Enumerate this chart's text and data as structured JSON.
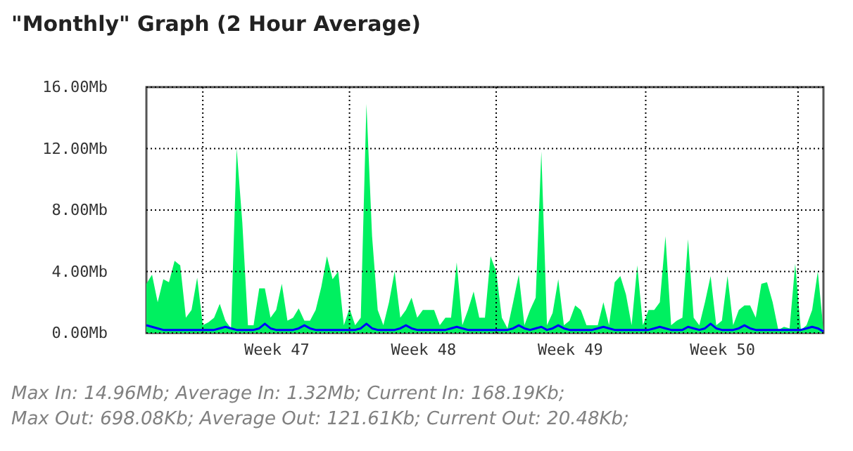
{
  "chart_data": {
    "type": "area",
    "title": "\"Monthly\" Graph (2 Hour Average)",
    "annotations": [
      "Max In: 14.96Mb; Average In: 1.32Mb; Current In: 168.19Kb;",
      "Max Out: 698.08Kb; Average Out: 121.61Kb; Current Out: 20.48Kb;"
    ],
    "categories": [
      null,
      null,
      null,
      null,
      null,
      null,
      null,
      null,
      null,
      null,
      null,
      null,
      null,
      null,
      null,
      null,
      null,
      null,
      null,
      null,
      null,
      null,
      null,
      "Week 47",
      null,
      null,
      null,
      null,
      null,
      null,
      null,
      null,
      null,
      null,
      null,
      null,
      null,
      null,
      null,
      null,
      null,
      null,
      null,
      null,
      null,
      null,
      null,
      null,
      null,
      "Week 48",
      null,
      null,
      null,
      null,
      null,
      null,
      null,
      null,
      null,
      null,
      null,
      null,
      null,
      null,
      null,
      null,
      null,
      null,
      null,
      null,
      null,
      null,
      null,
      null,
      null,
      "Week 49",
      null,
      null,
      null,
      null,
      null,
      null,
      null,
      null,
      null,
      null,
      null,
      null,
      null,
      null,
      null,
      null,
      null,
      null,
      null,
      null,
      null,
      null,
      null,
      null,
      null,
      null,
      "Week 50",
      null,
      null,
      null,
      null,
      null,
      null,
      null,
      null,
      null,
      null,
      null,
      null,
      null,
      null,
      null,
      null,
      null,
      null
    ],
    "ylim": [
      0,
      16
    ],
    "yticks": [
      {
        "value": 0,
        "label": "0.00Mb"
      },
      {
        "value": 4,
        "label": "4.00Mb"
      },
      {
        "value": 8,
        "label": "8.00Mb"
      },
      {
        "value": 12,
        "label": "12.00Mb"
      },
      {
        "value": 16,
        "label": "16.00Mb"
      }
    ],
    "grid": true,
    "series": [
      {
        "type": "area",
        "color": "#00f060",
        "values": [
          3.2,
          3.8,
          2.0,
          3.5,
          3.3,
          4.7,
          4.4,
          1.0,
          1.5,
          3.6,
          0.5,
          0.7,
          1.0,
          1.9,
          0.8,
          0.3,
          12.0,
          7.2,
          0.5,
          0.5,
          2.9,
          2.9,
          1.0,
          1.5,
          3.2,
          0.8,
          1.0,
          1.6,
          0.8,
          0.8,
          1.5,
          3.0,
          5.0,
          3.5,
          4.0,
          0.5,
          1.6,
          0.5,
          1.0,
          14.9,
          6.3,
          1.5,
          0.5,
          2.0,
          4.0,
          1.0,
          1.5,
          2.3,
          1.0,
          1.5,
          1.5,
          1.5,
          0.5,
          1.0,
          1.0,
          4.6,
          0.5,
          1.5,
          2.7,
          1.0,
          1.0,
          5.0,
          4.0,
          1.0,
          0.3,
          2.0,
          3.8,
          0.5,
          1.5,
          2.3,
          11.8,
          0.5,
          1.3,
          3.5,
          0.5,
          0.8,
          1.8,
          1.5,
          0.5,
          0.5,
          0.5,
          2.0,
          0.5,
          3.3,
          3.7,
          2.5,
          0.5,
          4.4,
          0.5,
          1.5,
          1.5,
          2.0,
          6.3,
          0.5,
          0.8,
          1.0,
          6.1,
          1.0,
          0.5,
          2.0,
          3.7,
          0.5,
          0.8,
          3.7,
          0.5,
          1.5,
          1.8,
          1.8,
          1.0,
          3.2,
          3.3,
          2.0,
          0.2,
          0.4,
          0.3,
          4.5,
          0.2,
          0.5,
          1.5,
          4.0,
          0.2
        ]
      },
      {
        "type": "line",
        "color": "#0000ff",
        "values": [
          0.5,
          0.4,
          0.3,
          0.2,
          0.2,
          0.2,
          0.2,
          0.2,
          0.2,
          0.2,
          0.2,
          0.2,
          0.2,
          0.3,
          0.4,
          0.3,
          0.2,
          0.2,
          0.2,
          0.2,
          0.3,
          0.6,
          0.3,
          0.2,
          0.2,
          0.2,
          0.2,
          0.3,
          0.5,
          0.3,
          0.2,
          0.2,
          0.2,
          0.2,
          0.2,
          0.2,
          0.2,
          0.2,
          0.3,
          0.6,
          0.3,
          0.2,
          0.2,
          0.2,
          0.2,
          0.3,
          0.5,
          0.3,
          0.2,
          0.2,
          0.2,
          0.2,
          0.2,
          0.2,
          0.3,
          0.4,
          0.3,
          0.2,
          0.2,
          0.2,
          0.2,
          0.2,
          0.2,
          0.2,
          0.2,
          0.3,
          0.5,
          0.3,
          0.2,
          0.3,
          0.4,
          0.2,
          0.3,
          0.5,
          0.3,
          0.2,
          0.2,
          0.2,
          0.2,
          0.2,
          0.3,
          0.4,
          0.3,
          0.2,
          0.2,
          0.2,
          0.2,
          0.2,
          0.2,
          0.2,
          0.3,
          0.4,
          0.3,
          0.2,
          0.2,
          0.2,
          0.4,
          0.3,
          0.2,
          0.3,
          0.6,
          0.3,
          0.2,
          0.2,
          0.2,
          0.3,
          0.5,
          0.3,
          0.2,
          0.2,
          0.2,
          0.2,
          0.2,
          0.2,
          0.2,
          0.2,
          0.2,
          0.3,
          0.4,
          0.3,
          0.1
        ]
      }
    ]
  }
}
